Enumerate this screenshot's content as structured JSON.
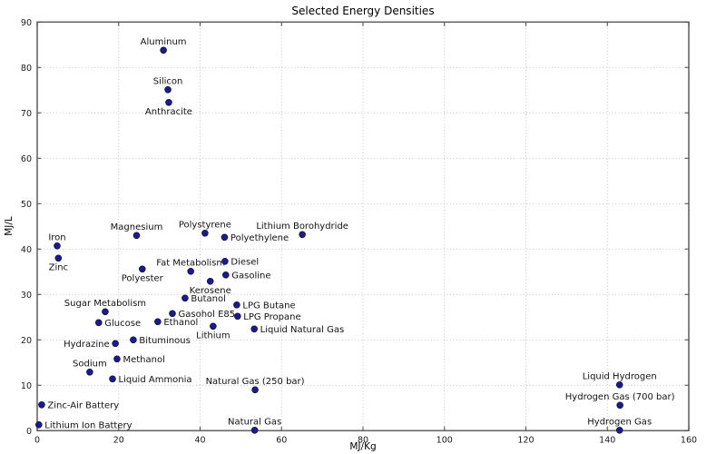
{
  "chart_data": {
    "type": "scatter",
    "title": "Selected Energy Densities",
    "xlabel": "MJ/Kg",
    "ylabel": "MJ/L",
    "xlim": [
      0,
      160
    ],
    "ylim": [
      0,
      90
    ],
    "xticks": [
      0,
      20,
      40,
      60,
      80,
      100,
      120,
      140,
      160
    ],
    "yticks": [
      0,
      10,
      20,
      30,
      40,
      50,
      60,
      70,
      80,
      90
    ],
    "grid": true,
    "legend": "none",
    "marker_color": "#1b1b8a",
    "marker_edge_color": "#10104d",
    "points": [
      {
        "label": "Aluminum",
        "x": 31.0,
        "y": 83.8,
        "pos": "above"
      },
      {
        "label": "Silicon",
        "x": 32.1,
        "y": 75.1,
        "pos": "above"
      },
      {
        "label": "Anthracite",
        "x": 32.3,
        "y": 72.3,
        "pos": "below"
      },
      {
        "label": "Iron",
        "x": 4.9,
        "y": 40.7,
        "pos": "above"
      },
      {
        "label": "Zinc",
        "x": 5.2,
        "y": 38.0,
        "pos": "below"
      },
      {
        "label": "Magnesium",
        "x": 24.4,
        "y": 43.0,
        "pos": "above"
      },
      {
        "label": "Polystyrene",
        "x": 41.2,
        "y": 43.5,
        "pos": "above"
      },
      {
        "label": "Polyethylene",
        "x": 46.0,
        "y": 42.6,
        "pos": "right"
      },
      {
        "label": "Lithium Borohydride",
        "x": 65.1,
        "y": 43.2,
        "pos": "above"
      },
      {
        "label": "Fat Metabolism",
        "x": 37.7,
        "y": 35.1,
        "pos": "above"
      },
      {
        "label": "Diesel",
        "x": 46.1,
        "y": 37.3,
        "pos": "right"
      },
      {
        "label": "Polyester",
        "x": 25.8,
        "y": 35.6,
        "pos": "below"
      },
      {
        "label": "Gasoline",
        "x": 46.3,
        "y": 34.3,
        "pos": "right"
      },
      {
        "label": "Kerosene",
        "x": 42.5,
        "y": 32.9,
        "pos": "below"
      },
      {
        "label": "Butanol",
        "x": 36.3,
        "y": 29.2,
        "pos": "right"
      },
      {
        "label": "Sugar Metabolism",
        "x": 16.7,
        "y": 26.2,
        "pos": "above"
      },
      {
        "label": "LPG Butane",
        "x": 49.0,
        "y": 27.7,
        "pos": "right"
      },
      {
        "label": "Gasohol E85",
        "x": 33.2,
        "y": 25.8,
        "pos": "right"
      },
      {
        "label": "LPG Propane",
        "x": 49.2,
        "y": 25.2,
        "pos": "right"
      },
      {
        "label": "Glucose",
        "x": 15.1,
        "y": 23.8,
        "pos": "right"
      },
      {
        "label": "Ethanol",
        "x": 29.6,
        "y": 24.0,
        "pos": "right"
      },
      {
        "label": "Lithium",
        "x": 43.2,
        "y": 23.0,
        "pos": "below"
      },
      {
        "label": "Liquid Natural Gas",
        "x": 53.3,
        "y": 22.4,
        "pos": "right"
      },
      {
        "label": "Hydrazine",
        "x": 19.2,
        "y": 19.2,
        "pos": "left"
      },
      {
        "label": "Bituminous",
        "x": 23.6,
        "y": 20.0,
        "pos": "right"
      },
      {
        "label": "Methanol",
        "x": 19.6,
        "y": 15.8,
        "pos": "right"
      },
      {
        "label": "Sodium",
        "x": 12.9,
        "y": 12.9,
        "pos": "above"
      },
      {
        "label": "Liquid Ammonia",
        "x": 18.5,
        "y": 11.4,
        "pos": "right"
      },
      {
        "label": "Natural Gas (250 bar)",
        "x": 53.5,
        "y": 9.0,
        "pos": "above"
      },
      {
        "label": "Zinc-Air Battery",
        "x": 1.1,
        "y": 5.7,
        "pos": "right"
      },
      {
        "label": "Lithium Ion Battery",
        "x": 0.4,
        "y": 1.3,
        "pos": "right"
      },
      {
        "label": "Natural Gas",
        "x": 53.4,
        "y": 0.1,
        "pos": "above"
      },
      {
        "label": "Liquid Hydrogen",
        "x": 143.0,
        "y": 10.1,
        "pos": "above"
      },
      {
        "label": "Hydrogen Gas (700 bar)",
        "x": 143.1,
        "y": 5.6,
        "pos": "above"
      },
      {
        "label": "Hydrogen Gas",
        "x": 143.0,
        "y": 0.1,
        "pos": "above"
      }
    ]
  }
}
